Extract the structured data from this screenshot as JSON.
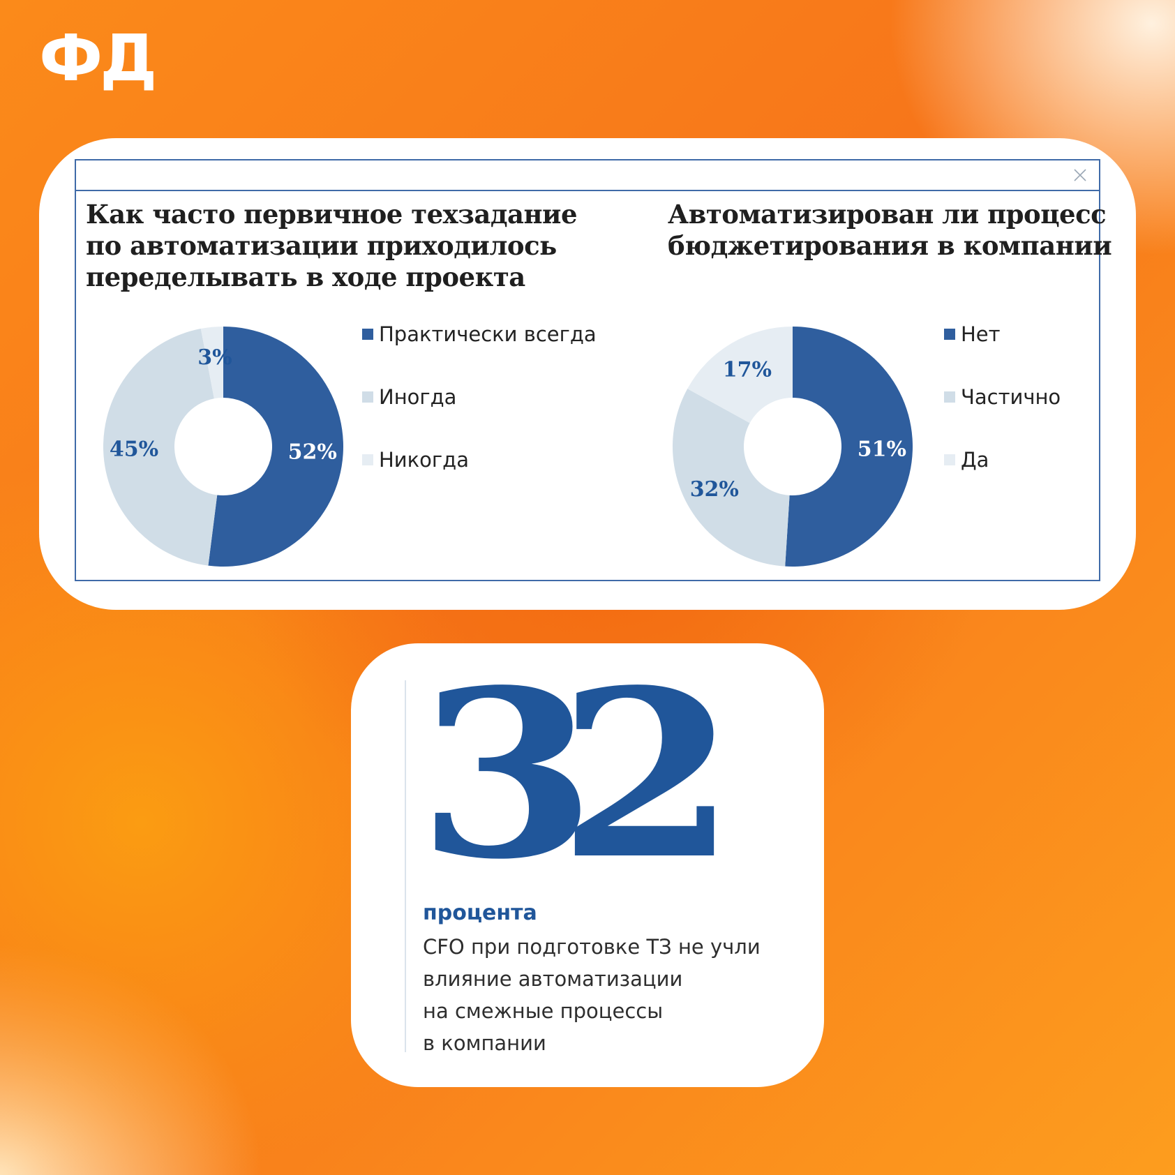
{
  "logo": "ФД",
  "colors": {
    "dark_blue": "#2f5e9e",
    "mid_blue": "#d0dde7",
    "light_blue": "#e6edf3",
    "label_blue": "#20569a"
  },
  "close_icon": "close-icon",
  "chart_data": [
    {
      "type": "pie",
      "title": "Как часто первичное техзадание\nпо автоматизации приходилось\nпеределывать в ходе проекта",
      "categories": [
        "Практически всегда",
        "Иногда",
        "Никогда"
      ],
      "values": [
        52,
        45,
        3
      ],
      "labels": [
        "52%",
        "45%",
        "3%"
      ],
      "colors": [
        "#2f5e9e",
        "#d0dde7",
        "#e6edf3"
      ],
      "legend": "right"
    },
    {
      "type": "pie",
      "title": "Автоматизирован ли процесс\nбюджетирования в компании",
      "categories": [
        "Нет",
        "Частично",
        "Да"
      ],
      "values": [
        51,
        32,
        17
      ],
      "labels": [
        "51%",
        "32%",
        "17%"
      ],
      "colors": [
        "#2f5e9e",
        "#d0dde7",
        "#e6edf3"
      ],
      "legend": "right"
    }
  ],
  "stat": {
    "number": "32",
    "unit": "процента",
    "caption": "CFO при подготовке ТЗ не учли\nвлияние автоматизации\nна смежные процессы\nв компании"
  }
}
